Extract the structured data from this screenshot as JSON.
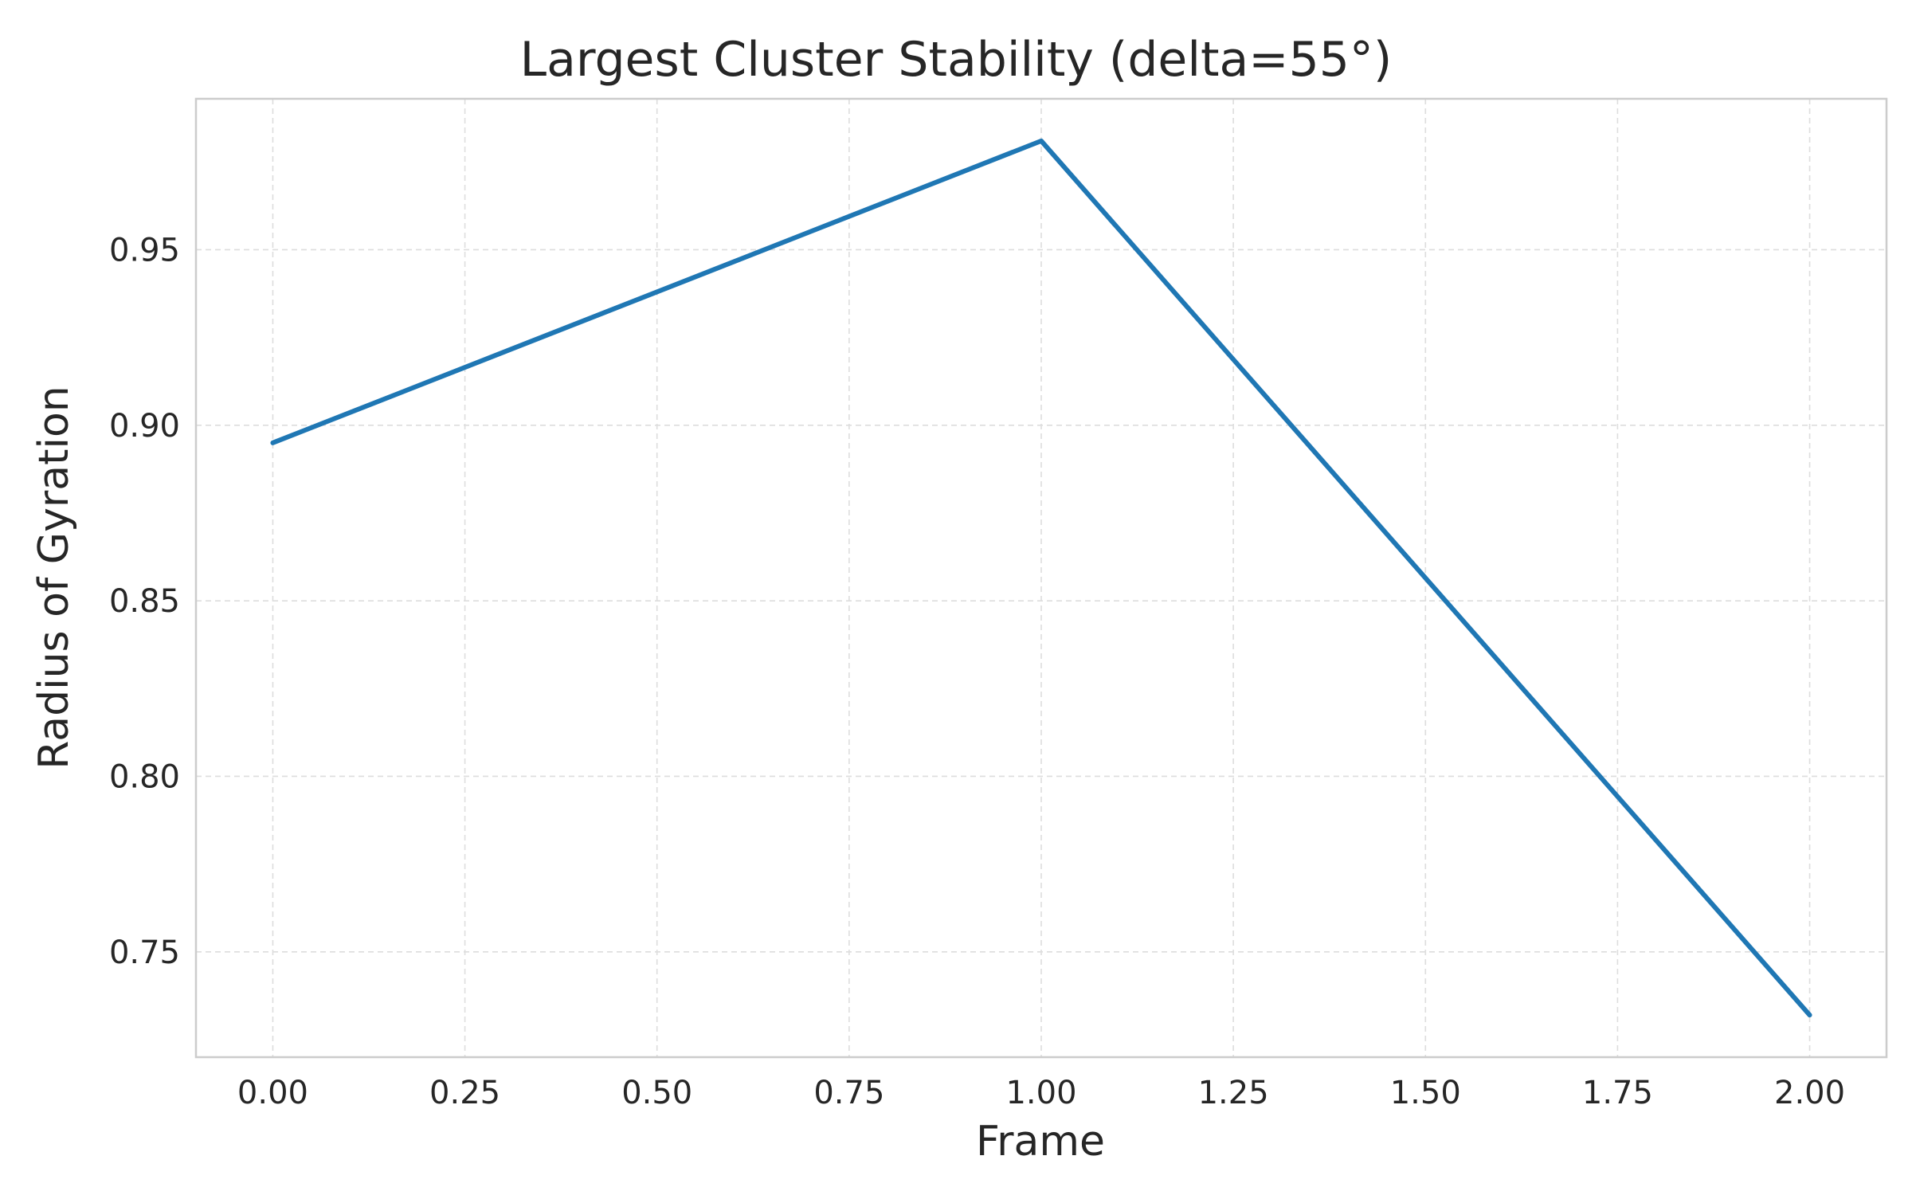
{
  "chart_data": {
    "type": "line",
    "title": "Largest Cluster Stability (delta=55°)",
    "xlabel": "Frame",
    "ylabel": "Radius of Gyration",
    "x": [
      0,
      1,
      2
    ],
    "series": [
      {
        "values": [
          0.895,
          0.981,
          0.732
        ],
        "color": "#1f77b4"
      }
    ],
    "xlim": [
      -0.1,
      2.1
    ],
    "ylim": [
      0.72,
      0.993
    ],
    "xticks": [
      0.0,
      0.25,
      0.5,
      0.75,
      1.0,
      1.25,
      1.5,
      1.75,
      2.0
    ],
    "xtick_labels": [
      "0.00",
      "0.25",
      "0.50",
      "0.75",
      "1.00",
      "1.25",
      "1.50",
      "1.75",
      "2.00"
    ],
    "yticks": [
      0.75,
      0.8,
      0.85,
      0.9,
      0.95
    ],
    "ytick_labels": [
      "0.75",
      "0.80",
      "0.85",
      "0.90",
      "0.95"
    ],
    "grid": true,
    "grid_style": "dashed",
    "legend": "none"
  }
}
